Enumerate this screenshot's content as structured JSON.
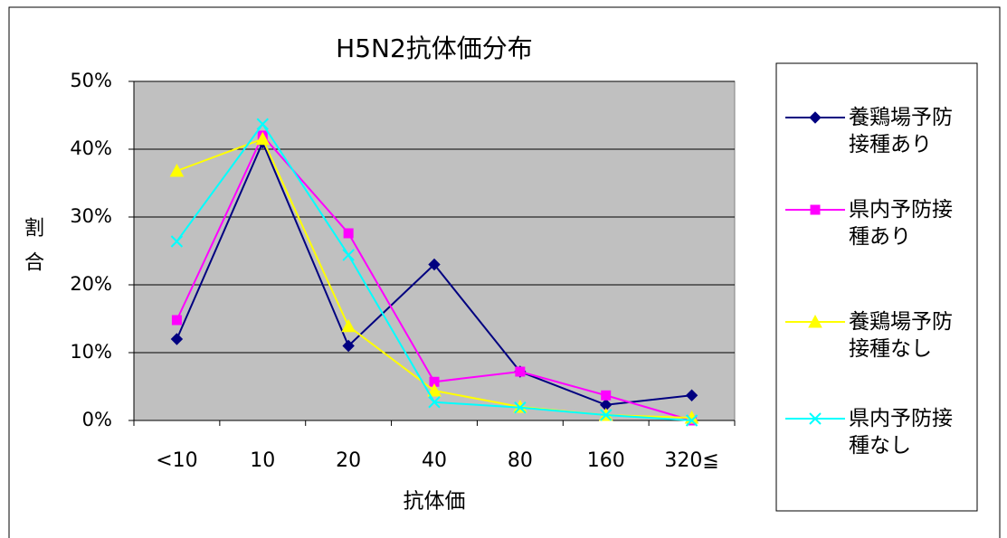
{
  "chart_data": {
    "type": "line",
    "title": "H5N2抗体価分布",
    "x_label": "抗体価",
    "y_label": "割合",
    "categories": [
      "<10",
      "10",
      "20",
      "40",
      "80",
      "160",
      "320≦"
    ],
    "series": [
      {
        "name": "養鶏場予防接種あり",
        "color": "#000080",
        "marker": "diamond",
        "values": [
          12,
          41,
          11,
          23,
          7.2,
          2.3,
          3.7
        ]
      },
      {
        "name": "県内予防接種あり",
        "color": "#ff00ff",
        "marker": "square",
        "values": [
          14.8,
          42,
          27.6,
          5.7,
          7.2,
          3.7,
          0
        ]
      },
      {
        "name": "養鶏場予防接種なし",
        "color": "#ffff00",
        "marker": "triangle",
        "values": [
          36.8,
          41.5,
          13.9,
          4.4,
          2,
          0.8,
          0.4
        ]
      },
      {
        "name": "県内予防接種なし",
        "color": "#00ffff",
        "marker": "x",
        "values": [
          26.4,
          43.7,
          24.4,
          2.7,
          1.9,
          0.8,
          0
        ]
      }
    ],
    "ylim": [
      0,
      50
    ],
    "yticks": [
      {
        "value": 0,
        "label": "0%"
      },
      {
        "value": 10,
        "label": "10%"
      },
      {
        "value": 20,
        "label": "20%"
      },
      {
        "value": 30,
        "label": "30%"
      },
      {
        "value": 40,
        "label": "40%"
      },
      {
        "value": 50,
        "label": "50%"
      }
    ],
    "grid": true,
    "legend": "right"
  }
}
